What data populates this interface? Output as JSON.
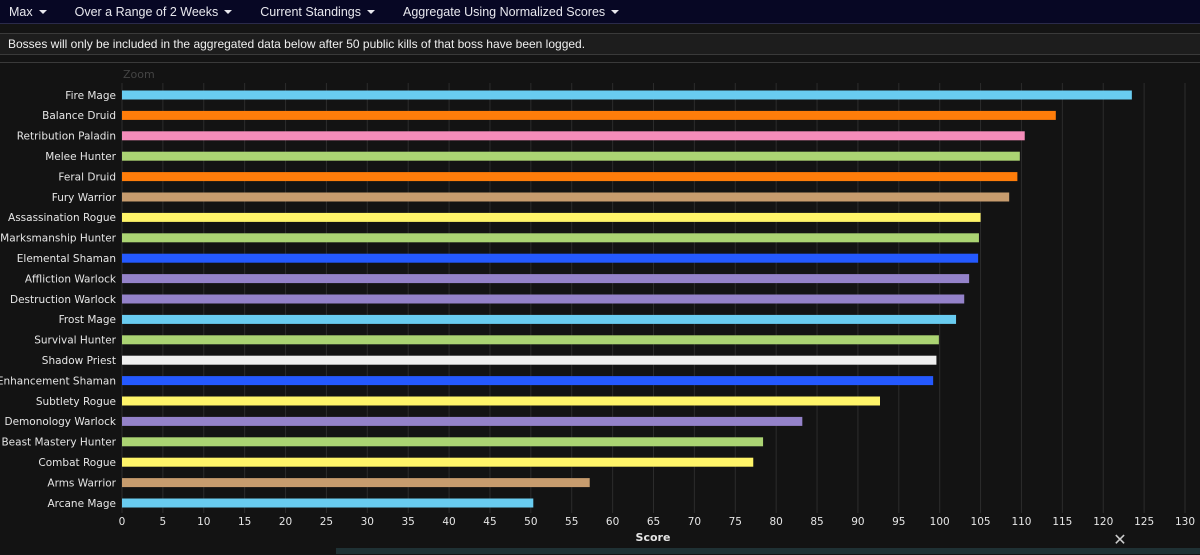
{
  "menu": [
    {
      "label": "Max"
    },
    {
      "label": "Over a Range of 2 Weeks"
    },
    {
      "label": "Current Standings"
    },
    {
      "label": "Aggregate Using Normalized Scores"
    }
  ],
  "notice": "Bosses will only be included in the aggregated data below after 50 public kills of that boss have been logged.",
  "zoom_label": "Zoom",
  "close_glyph": "✕",
  "chart_data": {
    "type": "bar",
    "orientation": "horizontal",
    "xlabel": "Score",
    "xlim": [
      0,
      130
    ],
    "xticks": [
      0,
      5,
      10,
      15,
      20,
      25,
      30,
      35,
      40,
      45,
      50,
      55,
      60,
      65,
      70,
      75,
      80,
      85,
      90,
      95,
      100,
      105,
      110,
      115,
      120,
      125,
      130
    ],
    "grid": true,
    "bars": [
      {
        "label": "Fire Mage",
        "value": 123.5,
        "color": "#69ccf0"
      },
      {
        "label": "Balance Druid",
        "value": 114.2,
        "color": "#ff7d0a"
      },
      {
        "label": "Retribution Paladin",
        "value": 110.4,
        "color": "#f58cba"
      },
      {
        "label": "Melee Hunter",
        "value": 109.8,
        "color": "#abd473"
      },
      {
        "label": "Feral Druid",
        "value": 109.5,
        "color": "#ff7d0a"
      },
      {
        "label": "Fury Warrior",
        "value": 108.5,
        "color": "#c79c6e"
      },
      {
        "label": "Assassination Rogue",
        "value": 105.0,
        "color": "#fff569"
      },
      {
        "label": "Marksmanship Hunter",
        "value": 104.8,
        "color": "#abd473"
      },
      {
        "label": "Elemental Shaman",
        "value": 104.7,
        "color": "#2459ff"
      },
      {
        "label": "Affliction Warlock",
        "value": 103.6,
        "color": "#9482c9"
      },
      {
        "label": "Destruction Warlock",
        "value": 103.0,
        "color": "#9482c9"
      },
      {
        "label": "Frost Mage",
        "value": 102.0,
        "color": "#69ccf0"
      },
      {
        "label": "Survival Hunter",
        "value": 99.9,
        "color": "#abd473"
      },
      {
        "label": "Shadow Priest",
        "value": 99.6,
        "color": "#f0f0f0"
      },
      {
        "label": "Enhancement Shaman",
        "value": 99.2,
        "color": "#2459ff"
      },
      {
        "label": "Subtlety Rogue",
        "value": 92.7,
        "color": "#fff569"
      },
      {
        "label": "Demonology Warlock",
        "value": 83.2,
        "color": "#9482c9"
      },
      {
        "label": "Beast Mastery Hunter",
        "value": 78.4,
        "color": "#abd473"
      },
      {
        "label": "Combat Rogue",
        "value": 77.2,
        "color": "#fff569"
      },
      {
        "label": "Arms Warrior",
        "value": 57.2,
        "color": "#c79c6e"
      },
      {
        "label": "Arcane Mage",
        "value": 50.3,
        "color": "#69ccf0"
      }
    ]
  }
}
